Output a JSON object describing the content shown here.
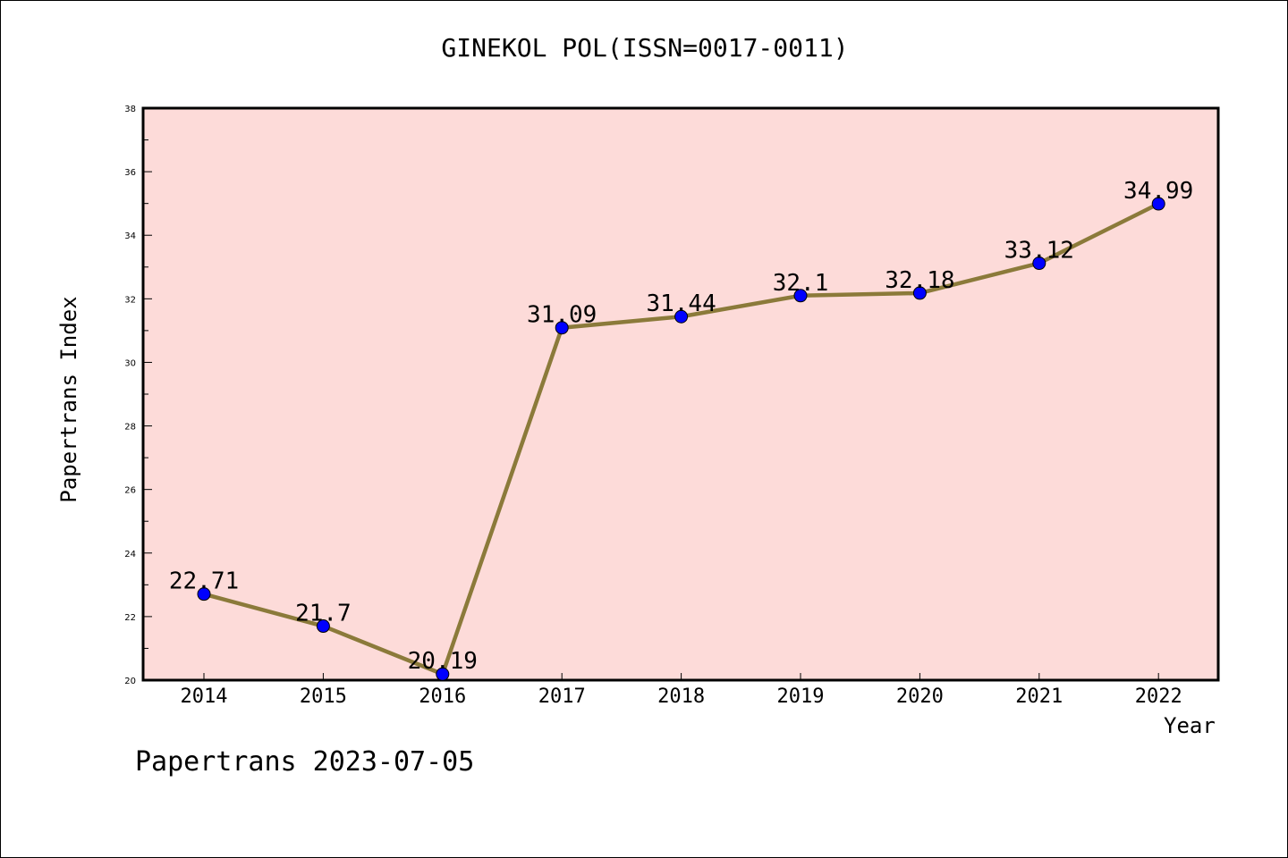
{
  "chart_data": {
    "type": "line",
    "title": "GINEKOL POL(ISSN=0017-0011)",
    "xlabel": "Year",
    "ylabel": "Papertrans Index",
    "x": [
      "2014",
      "2015",
      "2016",
      "2017",
      "2018",
      "2019",
      "2020",
      "2021",
      "2022"
    ],
    "series": [
      {
        "values": [
          22.71,
          21.7,
          20.19,
          31.09,
          31.44,
          32.1,
          32.18,
          33.12,
          34.99
        ],
        "labels": [
          "22.71",
          "21.7",
          "20.19",
          "31.09",
          "31.44",
          "32.1",
          "32.18",
          "33.12",
          "34.99"
        ]
      }
    ],
    "ylim": [
      20,
      38
    ],
    "yticks": [
      "20",
      "22",
      "24",
      "26",
      "28",
      "30",
      "32",
      "34",
      "36",
      "38"
    ],
    "grid": false,
    "colors": {
      "plot_background": "#fddbd9",
      "line": "#8b7a3a",
      "marker": "#0000ff"
    }
  },
  "footer": "Papertrans 2023-07-05"
}
